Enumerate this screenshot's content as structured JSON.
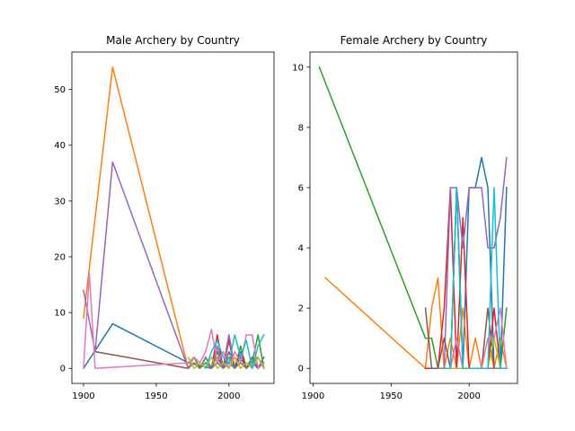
{
  "chart_data": [
    {
      "type": "line",
      "title": "Male Archery by Country",
      "xlabel": "",
      "ylabel": "",
      "xlim": [
        1892,
        2031
      ],
      "ylim": [
        -2.7,
        56.7
      ],
      "xticks": [
        1900,
        1950,
        2000
      ],
      "yticks": [
        0,
        10,
        20,
        30,
        40,
        50
      ],
      "grid": false,
      "series": [
        {
          "color": "#1f77b4",
          "x": [
            1900,
            1920,
            1972,
            1988,
            1992,
            1996,
            2000,
            2004,
            2008,
            2012,
            2016,
            2020,
            2024
          ],
          "y": [
            0,
            8,
            1,
            0,
            2,
            0,
            1,
            0,
            2,
            0,
            1,
            0,
            2
          ]
        },
        {
          "color": "#ff7f0e",
          "x": [
            1900,
            1920,
            1972,
            1976,
            1980,
            1984,
            1988,
            1992,
            1996,
            2000,
            2004,
            2008,
            2012,
            2016,
            2020,
            2024
          ],
          "y": [
            9,
            54,
            0,
            2,
            0,
            1,
            0,
            2,
            1,
            0,
            2,
            0,
            1,
            0,
            2,
            0
          ]
        },
        {
          "color": "#2ca02c",
          "x": [
            1972,
            1976,
            1980,
            1984,
            1988,
            1992,
            1996,
            2000,
            2004,
            2008,
            2012,
            2016,
            2020,
            2024
          ],
          "y": [
            1,
            2,
            0,
            1,
            0,
            3,
            0,
            6,
            0,
            4,
            0,
            1,
            6,
            0
          ]
        },
        {
          "color": "#d62728",
          "x": [
            1972,
            1976,
            1980,
            1984,
            1988,
            1992,
            1996,
            2000,
            2004,
            2008,
            2012,
            2016,
            2020,
            2024
          ],
          "y": [
            0,
            1,
            0,
            2,
            0,
            6,
            0,
            5,
            0,
            3,
            0,
            2,
            0,
            1
          ]
        },
        {
          "color": "#9467bd",
          "x": [
            1900,
            1908,
            1920,
            1972,
            1976,
            1980,
            1984,
            1988,
            1992,
            1996,
            2000,
            2004,
            2008,
            2012,
            2016,
            2020,
            2024
          ],
          "y": [
            14,
            3,
            37,
            0,
            1,
            0,
            2,
            0,
            4,
            0,
            6,
            0,
            1,
            0,
            2,
            0,
            1
          ]
        },
        {
          "color": "#8c564b",
          "x": [
            1908,
            1972,
            1976,
            1980,
            1984,
            1988,
            1992,
            1996,
            2000,
            2004,
            2008,
            2012,
            2016,
            2020,
            2024
          ],
          "y": [
            3,
            0,
            1,
            0,
            2,
            0,
            1,
            0,
            3,
            0,
            1,
            0,
            2,
            0,
            1
          ]
        },
        {
          "color": "#e377c2",
          "x": [
            1900,
            1904,
            1908,
            1972,
            1976,
            1980,
            1984,
            1988,
            1992,
            1996,
            2000,
            2004,
            2008,
            2012,
            2016,
            2020,
            2024
          ],
          "y": [
            0,
            17,
            0,
            1,
            2,
            1,
            3,
            7,
            1,
            3,
            0,
            3,
            1,
            6,
            6,
            0,
            1
          ]
        },
        {
          "color": "#7f7f7f",
          "x": [
            1972,
            1976,
            1980,
            1984,
            1988,
            1992,
            1996,
            2000,
            2004,
            2008,
            2012,
            2016,
            2020,
            2024
          ],
          "y": [
            0,
            1,
            0,
            2,
            0,
            1,
            0,
            2,
            0,
            1,
            0,
            1,
            2,
            0
          ]
        },
        {
          "color": "#bcbd22",
          "x": [
            1972,
            1976,
            1980,
            1984,
            1988,
            1992,
            1996,
            2000,
            2004,
            2008,
            2012,
            2016,
            2020,
            2024
          ],
          "y": [
            2,
            0,
            1,
            0,
            2,
            0,
            1,
            0,
            2,
            0,
            1,
            0,
            2,
            0
          ]
        },
        {
          "color": "#17becf",
          "x": [
            1984,
            1988,
            1992,
            1996,
            2000,
            2004,
            2008,
            2012,
            2016,
            2020,
            2024
          ],
          "y": [
            0,
            3,
            5,
            2,
            1,
            6,
            2,
            5,
            0,
            4,
            6
          ]
        }
      ]
    },
    {
      "type": "line",
      "title": "Female Archery by Country",
      "xlabel": "",
      "ylabel": "",
      "xlim": [
        1898,
        2031
      ],
      "ylim": [
        -0.5,
        10.5
      ],
      "xticks": [
        1900,
        1950,
        2000
      ],
      "yticks": [
        0,
        2,
        4,
        6,
        8,
        10
      ],
      "grid": false,
      "series": [
        {
          "color": "#1f77b4",
          "x": [
            1972,
            1976,
            1980,
            1984,
            1988,
            1992,
            1996,
            2000,
            2004,
            2008,
            2012,
            2016,
            2020,
            2024
          ],
          "y": [
            0,
            0,
            0,
            0,
            0,
            6,
            0,
            6,
            6,
            7,
            6,
            0,
            0,
            6
          ]
        },
        {
          "color": "#ff7f0e",
          "x": [
            1908,
            1972,
            1976,
            1980,
            1984,
            1988,
            1992,
            1996,
            2000,
            2004,
            2008,
            2012,
            2016,
            2020,
            2024
          ],
          "y": [
            3,
            0,
            2,
            3,
            0,
            1,
            0,
            2,
            0,
            1,
            0,
            1,
            0,
            1,
            0
          ]
        },
        {
          "color": "#2ca02c",
          "x": [
            1904,
            1972,
            1976,
            1980,
            1984,
            1988,
            1992,
            1996,
            2000,
            2004,
            2008,
            2012,
            2016,
            2020,
            2024
          ],
          "y": [
            10,
            1,
            1,
            0,
            0,
            0,
            6,
            0,
            0,
            0,
            0,
            0,
            0,
            0,
            2
          ]
        },
        {
          "color": "#d62728",
          "x": [
            1972,
            1976,
            1980,
            1984,
            1988,
            1992,
            1996,
            2000,
            2004,
            2008,
            2012,
            2016,
            2020,
            2024
          ],
          "y": [
            0,
            0,
            0,
            2,
            6,
            0,
            5,
            0,
            0,
            0,
            0,
            2,
            0,
            0
          ]
        },
        {
          "color": "#9467bd",
          "x": [
            1976,
            1984,
            1988,
            1992,
            1996,
            2000,
            2004,
            2008,
            2012,
            2016,
            2020,
            2024
          ],
          "y": [
            0,
            0,
            6,
            6,
            4,
            6,
            6,
            6,
            4,
            4,
            5,
            7
          ]
        },
        {
          "color": "#8c564b",
          "x": [
            1972,
            1976,
            1980,
            1984,
            1988,
            1992,
            1996,
            2000,
            2004,
            2008,
            2012,
            2016,
            2020,
            2024
          ],
          "y": [
            2,
            0,
            0,
            1,
            0,
            1,
            0,
            0,
            0,
            0,
            2,
            0,
            0,
            0
          ]
        },
        {
          "color": "#e377c2",
          "x": [
            1984,
            1988,
            1992,
            1996,
            2000,
            2004,
            2008,
            2012,
            2016,
            2020,
            2024
          ],
          "y": [
            0,
            0,
            1,
            0,
            0,
            0,
            0,
            1,
            1,
            2,
            0
          ]
        },
        {
          "color": "#7f7f7f",
          "x": [
            1980,
            1984,
            1988,
            1992,
            1996,
            2000,
            2004,
            2008,
            2012,
            2016,
            2020,
            2024
          ],
          "y": [
            0,
            0,
            0,
            0,
            0,
            0,
            0,
            0,
            0,
            0,
            0,
            0
          ]
        },
        {
          "color": "#bcbd22",
          "x": [
            1984,
            1988,
            1992,
            1996,
            2000,
            2004,
            2008,
            2012,
            2016,
            2020,
            2024
          ],
          "y": [
            0,
            0,
            0,
            0,
            0,
            0,
            0,
            0,
            1,
            0,
            0
          ]
        },
        {
          "color": "#17becf",
          "x": [
            1984,
            1988,
            1992,
            1996,
            2000,
            2004,
            2008,
            2012,
            2016,
            2020,
            2024
          ],
          "y": [
            0,
            0,
            6,
            0,
            0,
            0,
            0,
            0,
            6,
            0,
            0
          ]
        }
      ]
    }
  ]
}
